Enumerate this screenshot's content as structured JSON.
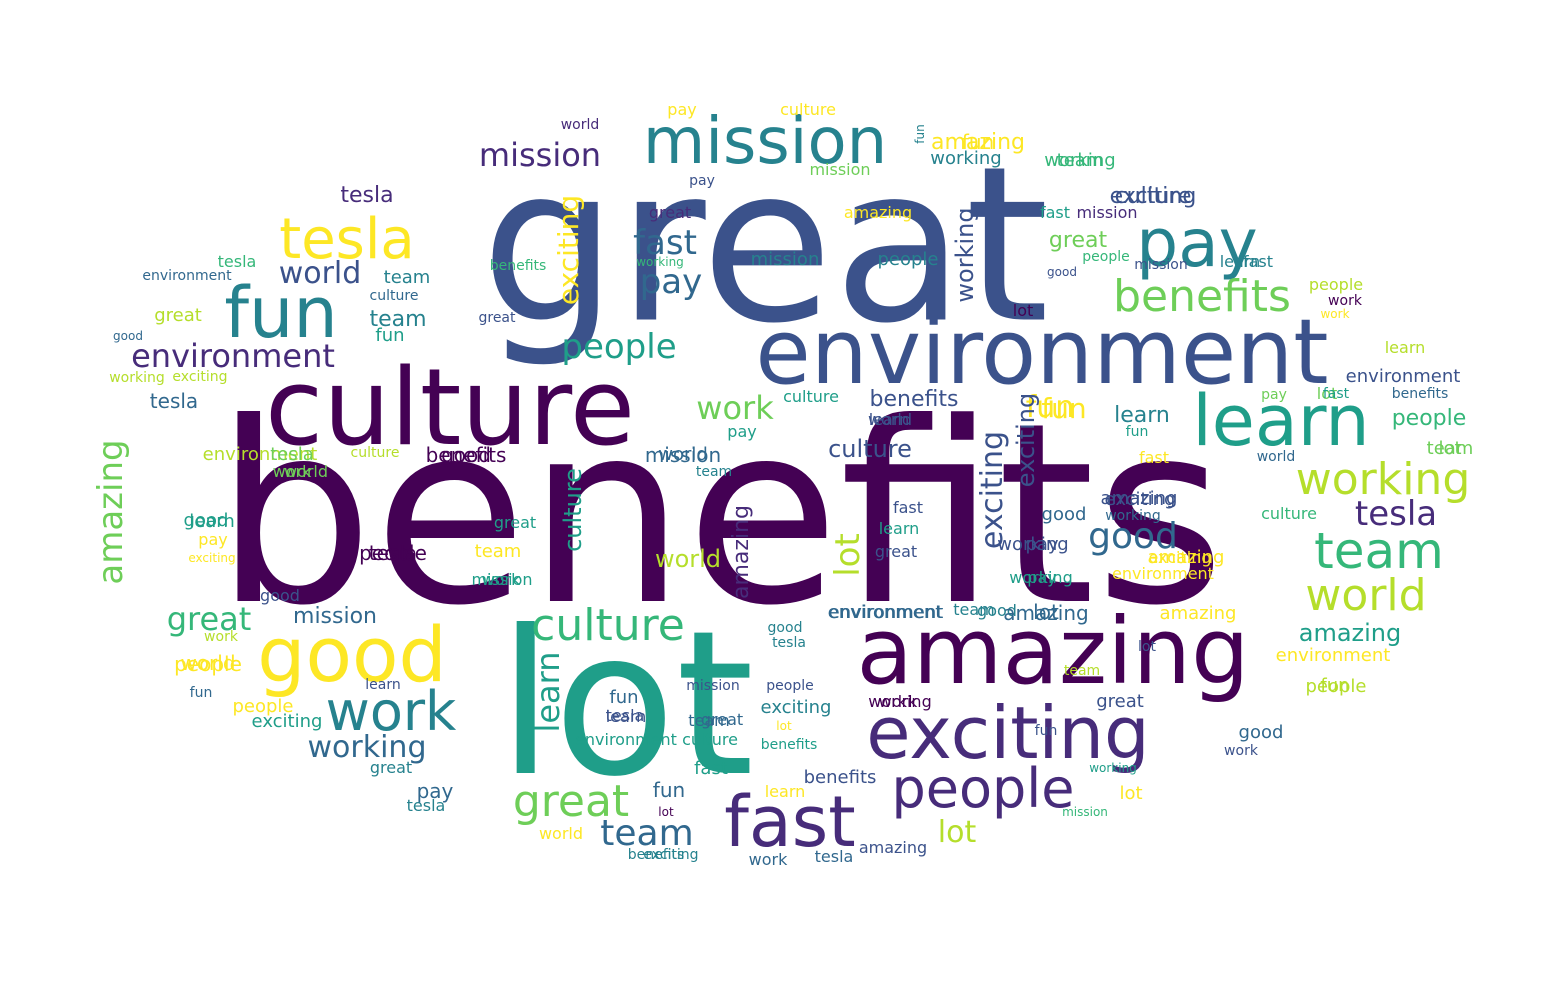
{
  "palette": {
    "dark_purple": "#440154",
    "purple": "#472c7a",
    "indigo": "#3b528b",
    "blue": "#31688e",
    "teal": "#26828e",
    "green_teal": "#1f9e89",
    "green": "#35b779",
    "light_green": "#6ece58",
    "lime": "#b5de2b",
    "yellow": "#fde725"
  },
  "words": [
    "benefits",
    "great",
    "lot",
    "culture",
    "environment",
    "amazing",
    "mission",
    "exciting",
    "fast",
    "people",
    "tesla",
    "fun",
    "good",
    "work",
    "learn",
    "pay",
    "benefits",
    "working",
    "team",
    "world",
    "great",
    "mission",
    "fast",
    "pay",
    "world",
    "environment",
    "team",
    "tesla",
    "people",
    "learn",
    "culture",
    "lot",
    "exciting",
    "amazing",
    "working",
    "exciting",
    "amazing",
    "good",
    "lot",
    "tesla",
    "working",
    "culture",
    "fun",
    "work",
    "world",
    "great",
    "team",
    "mission",
    "benefits",
    "learn",
    "environment",
    "amazing",
    "working",
    "exciting",
    "tesla",
    "people",
    "great",
    "fast",
    "culture",
    "benefits",
    "good",
    "fun",
    "pay",
    "learn",
    "environment",
    "mission",
    "world",
    "exciting",
    "tesla",
    "team",
    "mission",
    "work",
    "pay",
    "fun",
    "world",
    "good",
    "lot",
    "amazing",
    "lot",
    "fun",
    "great",
    "team",
    "great",
    "work",
    "people",
    "exciting",
    "benefits",
    "learn",
    "pay",
    "culture",
    "world",
    "fun",
    "working",
    "amazing",
    "team",
    "mission",
    "pay",
    "great",
    "amazing",
    "fast",
    "mission",
    "culture",
    "people",
    "working",
    "benefits",
    "people",
    "mission",
    "fast",
    "good",
    "tesla",
    "environment",
    "team",
    "culture",
    "great",
    "fun",
    "good",
    "working",
    "lot",
    "work",
    "work",
    "people",
    "learn",
    "environment",
    "benefits",
    "fast",
    "pay",
    "culture",
    "learn",
    "pay",
    "fun",
    "world",
    "fast",
    "lot",
    "people",
    "world",
    "good",
    "tesla",
    "culture",
    "work",
    "team",
    "great",
    "working",
    "exciting",
    "culture",
    "learn",
    "pay",
    "exciting",
    "amazing",
    "environment",
    "working",
    "working",
    "great",
    "team",
    "mission",
    "tesla",
    "good",
    "environment",
    "good",
    "amazing",
    "amazing",
    "work",
    "world",
    "good",
    "tesla",
    "lot",
    "environment",
    "team",
    "people",
    "fun",
    "learn",
    "people",
    "exciting",
    "mission",
    "people",
    "fun",
    "learn",
    "team",
    "culture",
    "environment",
    "lot",
    "benefits",
    "exciting",
    "working",
    "great",
    "fun",
    "good",
    "work",
    "working",
    "lot",
    "mission",
    "benefits",
    "amazing",
    "learn",
    "fast",
    "fun",
    "lot",
    "world",
    "exciting",
    "work",
    "tesla",
    "great",
    "pay",
    "tesla",
    "exciting",
    "tesla",
    "people",
    "lot",
    "fast",
    "environment",
    "culture",
    "good",
    "culture",
    "fun",
    "exciting",
    "pay",
    "environment",
    "benefits",
    "team",
    "team",
    "working",
    "good",
    "work",
    "working",
    "great",
    "fast",
    "work",
    "learn",
    "culture",
    "working",
    "pay",
    "world",
    "benefits",
    "fast",
    "amazing",
    "exciting",
    "amazing",
    "tesla",
    "pay",
    "people",
    "world",
    "great",
    "fast",
    "pay",
    "good",
    "work",
    "exciting",
    "world",
    "environment",
    "world",
    "benefits",
    "learn",
    "good",
    "tesla",
    "mission",
    "mission",
    "lot",
    "good",
    "benefits",
    "people",
    "work",
    "culture",
    "team",
    "fun",
    "benefits",
    "people",
    "great",
    "environment",
    "learn",
    "amazing",
    "team",
    "fun",
    "working",
    "lot",
    "work",
    "mission",
    "working"
  ]
}
